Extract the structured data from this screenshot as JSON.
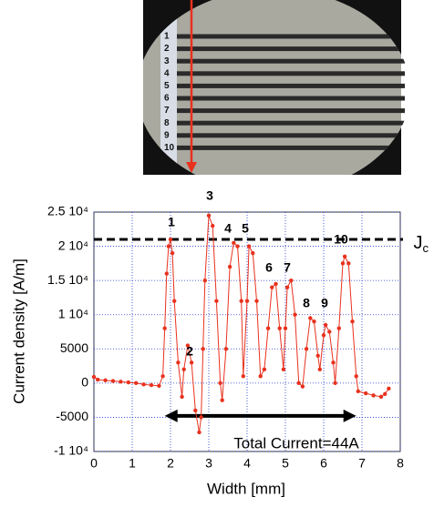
{
  "photo": {
    "labels": [
      "1",
      "2",
      "3",
      "4",
      "5",
      "6",
      "7",
      "8",
      "9",
      "10"
    ]
  },
  "chart_data": {
    "type": "line",
    "x_label": "Width [mm]",
    "y_label": "Current density [A/m]",
    "x": [
      0,
      0.1,
      0.3,
      0.5,
      0.7,
      0.9,
      1.1,
      1.3,
      1.5,
      1.7,
      1.8,
      1.85,
      1.9,
      1.95,
      2.0,
      2.05,
      2.1,
      2.2,
      2.3,
      2.35,
      2.45,
      2.55,
      2.65,
      2.75,
      2.8,
      2.85,
      2.9,
      3.0,
      3.1,
      3.2,
      3.3,
      3.35,
      3.45,
      3.55,
      3.65,
      3.75,
      3.85,
      3.9,
      4.0,
      4.05,
      4.15,
      4.25,
      4.35,
      4.45,
      4.55,
      4.65,
      4.75,
      4.85,
      4.95,
      5.0,
      5.05,
      5.15,
      5.25,
      5.35,
      5.45,
      5.55,
      5.65,
      5.75,
      5.85,
      5.9,
      6.0,
      6.05,
      6.15,
      6.25,
      6.3,
      6.4,
      6.5,
      6.55,
      6.65,
      6.75,
      6.85,
      6.9,
      7.1,
      7.3,
      7.5,
      7.6,
      7.7
    ],
    "series": [
      {
        "color": "#e8321e",
        "values": [
          900,
          500,
          400,
          300,
          200,
          100,
          0,
          -200,
          -300,
          -400,
          1000,
          8000,
          16000,
          20000,
          21000,
          19000,
          12000,
          3000,
          -2000,
          2000,
          5500,
          3000,
          -4000,
          -7200,
          -5000,
          5000,
          15000,
          24500,
          23000,
          12000,
          0,
          -2500,
          5000,
          17000,
          20500,
          20000,
          12000,
          1000,
          12000,
          20000,
          19000,
          12000,
          1000,
          2000,
          8000,
          14000,
          14500,
          8000,
          2000,
          8000,
          14000,
          15000,
          10000,
          0,
          -500,
          5000,
          9500,
          9000,
          4000,
          2000,
          7000,
          8500,
          7500,
          3000,
          0,
          8000,
          17500,
          18500,
          17500,
          9000,
          1000,
          -1200,
          -1500,
          -1800,
          -2000,
          -1600,
          -800
        ]
      }
    ],
    "xlim": [
      0,
      8
    ],
    "xticks": [
      0,
      1,
      2,
      3,
      4,
      5,
      6,
      7,
      8
    ],
    "ylim": [
      -10000,
      25000
    ],
    "yticks": [
      {
        "value": -10000,
        "label": "-1 10⁴"
      },
      -5000,
      0,
      5000,
      {
        "value": 10000,
        "label": "1 10⁴"
      },
      {
        "value": 15000,
        "label": "1.5 10⁴"
      },
      {
        "value": 20000,
        "label": "2 10⁴"
      },
      {
        "value": 25000,
        "label": "2.5 10⁴"
      }
    ],
    "grid": true,
    "grid_color": "#2233cc",
    "peak_labels": [
      "1",
      "2",
      "3",
      "4",
      "5",
      "6",
      "7",
      "8",
      "9",
      "10"
    ],
    "jc": {
      "label": "J",
      "sub": "c",
      "value": 21000
    },
    "span": {
      "x": [
        1.85,
        6.85
      ],
      "y": -4800,
      "label": "Total Current=44A"
    }
  }
}
